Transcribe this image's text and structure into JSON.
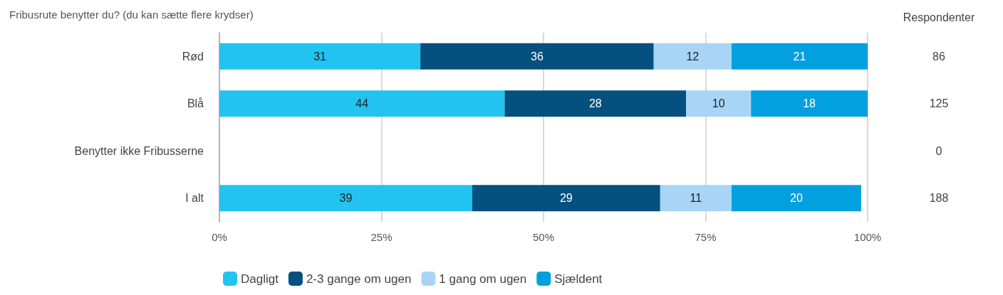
{
  "chart_data": {
    "type": "bar",
    "orientation": "horizontal",
    "stacked": true,
    "title": "Fribusrute benytter du? (du kan sætte flere krydser)",
    "categories": [
      "Rød",
      "Blå",
      "Benytter ikke Fribusserne",
      "I alt"
    ],
    "series": [
      {
        "name": "Dagligt",
        "color": "#22c3f0",
        "values": [
          31,
          44,
          null,
          39
        ]
      },
      {
        "name": "2-3 gange om ugen",
        "color": "#04507f",
        "values": [
          36,
          28,
          null,
          29
        ]
      },
      {
        "name": "1 gang om ugen",
        "color": "#a8d5f5",
        "values": [
          12,
          10,
          null,
          11
        ]
      },
      {
        "name": "Sjældent",
        "color": "#03a0e0",
        "values": [
          21,
          18,
          null,
          20
        ]
      }
    ],
    "xlim": [
      0,
      100
    ],
    "xticks": [
      {
        "value": 0,
        "label": "0%"
      },
      {
        "value": 25,
        "label": "25%"
      },
      {
        "value": 50,
        "label": "50%"
      },
      {
        "value": 75,
        "label": "75%"
      },
      {
        "value": 100,
        "label": "100%"
      }
    ],
    "annotations": [
      "Respondenter",
      "86",
      "125",
      "0",
      "188"
    ],
    "data_labels": true,
    "grid": "x",
    "legend": "bottom"
  }
}
